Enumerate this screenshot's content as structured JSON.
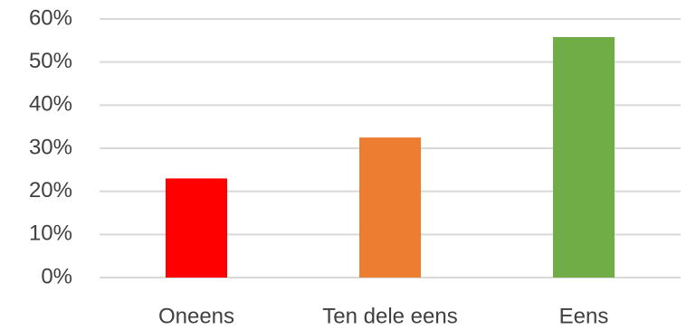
{
  "chart_data": {
    "type": "bar",
    "categories": [
      "Oneens",
      "Ten dele eens",
      "Eens"
    ],
    "values": [
      23,
      32.5,
      55.8
    ],
    "bar_colors": [
      "#ff0000",
      "#ed7d31",
      "#70ad47"
    ],
    "ylim": [
      0,
      60
    ],
    "yticks": [
      0,
      10,
      20,
      30,
      40,
      50,
      60
    ],
    "ytick_labels": [
      "0%",
      "10%",
      "20%",
      "30%",
      "40%",
      "50%",
      "60%"
    ],
    "grid": true,
    "title": "",
    "xlabel": "",
    "ylabel": ""
  }
}
